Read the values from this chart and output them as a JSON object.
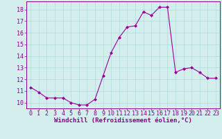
{
  "x": [
    0,
    1,
    2,
    3,
    4,
    5,
    6,
    7,
    8,
    9,
    10,
    11,
    12,
    13,
    14,
    15,
    16,
    17,
    18,
    19,
    20,
    21,
    22,
    23
  ],
  "y": [
    11.3,
    10.9,
    10.4,
    10.4,
    10.4,
    10.0,
    9.8,
    9.8,
    10.3,
    12.3,
    14.3,
    15.6,
    16.5,
    16.6,
    17.8,
    17.5,
    18.2,
    18.2,
    12.6,
    12.9,
    13.0,
    12.6,
    12.1,
    12.1
  ],
  "line_color": "#990099",
  "marker": "D",
  "marker_size": 2.0,
  "bg_color": "#d4eeee",
  "grid_color": "#aadddd",
  "xlabel": "Windchill (Refroidissement éolien,°C)",
  "xlabel_fontsize": 6.5,
  "tick_label_color": "#880088",
  "tick_fontsize": 6.0,
  "ylim": [
    9.5,
    18.7
  ],
  "xlim": [
    -0.5,
    23.5
  ],
  "yticks": [
    10,
    11,
    12,
    13,
    14,
    15,
    16,
    17,
    18
  ],
  "xticks": [
    0,
    1,
    2,
    3,
    4,
    5,
    6,
    7,
    8,
    9,
    10,
    11,
    12,
    13,
    14,
    15,
    16,
    17,
    18,
    19,
    20,
    21,
    22,
    23
  ]
}
